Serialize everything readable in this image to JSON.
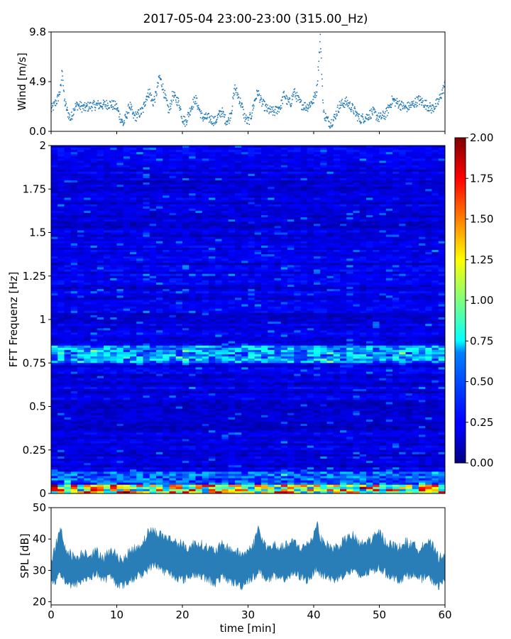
{
  "title": "2017-05-04 23:00-23:00 (315.00_Hz)",
  "chart_data": [
    {
      "type": "scatter",
      "panel": "wind",
      "ylabel": "Wind [m/s]",
      "ylim": [
        0,
        9.8
      ],
      "xlim": [
        0,
        60
      ],
      "yticks": [
        0.0,
        4.9,
        9.8
      ],
      "ytick_labels": [
        "0.0",
        "4.9",
        "9.8"
      ],
      "marker_color": "#1f77b4",
      "series": [
        {
          "x": [
            0,
            0.5,
            1,
            1.5,
            1.7,
            2,
            2.5,
            3,
            3.5,
            4,
            5,
            6,
            7,
            8,
            9,
            10,
            10.5,
            11,
            11.5,
            12,
            12.5,
            13,
            14,
            14.5,
            15,
            15.5,
            16,
            16.5,
            17,
            17.5,
            18,
            18.5,
            19,
            19.5,
            20,
            20.5,
            21,
            21.5,
            22,
            23,
            24,
            25,
            26,
            26.5,
            27,
            27.5,
            28,
            28.5,
            29,
            29.5,
            30,
            30.5,
            31,
            31.5,
            32,
            33,
            34,
            35,
            35.5,
            36,
            36.5,
            37,
            38,
            39,
            40,
            40.5,
            41,
            41.5,
            42,
            42.5,
            43,
            43.5,
            44,
            45,
            46,
            47,
            48,
            49,
            50,
            51,
            52,
            53,
            54,
            55,
            56,
            57,
            58,
            59,
            60
          ],
          "y": [
            2.1,
            2.6,
            3.2,
            4.3,
            6.3,
            3.1,
            1.9,
            1.2,
            2.3,
            2.6,
            2.3,
            2.5,
            2.6,
            2.6,
            2.7,
            2.4,
            1.4,
            0.7,
            1.6,
            2.6,
            1.5,
            1.5,
            2.1,
            3.4,
            3.9,
            2.8,
            3.6,
            5.4,
            4.4,
            3.0,
            1.9,
            3.6,
            3.2,
            2.8,
            1.3,
            0.9,
            1.8,
            2.6,
            3.2,
            1.4,
            1.3,
            1.0,
            2.0,
            1.2,
            1.0,
            2.1,
            4.3,
            3.5,
            2.6,
            1.4,
            0.9,
            1.6,
            3.0,
            3.9,
            2.9,
            2.1,
            1.9,
            2.5,
            3.7,
            2.9,
            2.8,
            3.9,
            2.7,
            2.4,
            3.1,
            4.2,
            9.3,
            1.8,
            1.2,
            0.8,
            1.1,
            1.9,
            2.6,
            2.9,
            2.2,
            1.2,
            1.4,
            1.9,
            1.3,
            1.7,
            3.1,
            2.7,
            2.3,
            2.6,
            3.1,
            2.7,
            2.2,
            2.9,
            4.6
          ]
        }
      ]
    },
    {
      "type": "heatmap",
      "panel": "spectrogram",
      "ylabel": "FFT Frequenz [Hz]",
      "ylim": [
        0,
        2
      ],
      "xlim": [
        0,
        60
      ],
      "yticks": [
        0,
        0.25,
        0.5,
        0.75,
        1,
        1.25,
        1.5,
        1.75,
        2
      ],
      "ytick_labels": [
        "0",
        "0.25",
        "0.5",
        "0.75",
        "1",
        "1.25",
        "1.5",
        "1.75",
        "2"
      ],
      "colormap": "jet",
      "colorbar": {
        "range": [
          0,
          2
        ],
        "ticks": [
          0.0,
          0.25,
          0.5,
          0.75,
          1.0,
          1.25,
          1.5,
          1.75,
          2.0
        ],
        "tick_labels": [
          "0.00",
          "0.25",
          "0.50",
          "0.75",
          "1.00",
          "1.25",
          "1.50",
          "1.75",
          "2.00"
        ]
      },
      "features": [
        {
          "band_hz": [
            0.0,
            0.05
          ],
          "level": 1.5
        },
        {
          "band_hz": [
            0.75,
            0.85
          ],
          "level": 0.8
        },
        {
          "band_hz": [
            0.1,
            2.0
          ],
          "level": 0.22
        }
      ]
    },
    {
      "type": "area",
      "panel": "spl",
      "ylabel": "SPL [dB]",
      "xlabel": "time [min]",
      "ylim": [
        19,
        50
      ],
      "xlim": [
        0,
        60
      ],
      "yticks": [
        20,
        30,
        40,
        50
      ],
      "ytick_labels": [
        "20",
        "30",
        "40",
        "50"
      ],
      "xticks": [
        0,
        10,
        20,
        30,
        40,
        50,
        60
      ],
      "xtick_labels": [
        "0",
        "10",
        "20",
        "30",
        "40",
        "50",
        "60"
      ],
      "fill_color": "#1f77b4",
      "series": [
        {
          "x": [
            0,
            0.5,
            1,
            1.5,
            2,
            3,
            4,
            5,
            6,
            7,
            8,
            9,
            10,
            11,
            12,
            13,
            14,
            15,
            16,
            17,
            18,
            19,
            20,
            21,
            22,
            23,
            24,
            25,
            26,
            27,
            28,
            29,
            30,
            31,
            31.5,
            32,
            33,
            34,
            35,
            36,
            37,
            38,
            39,
            40,
            40.5,
            41,
            42,
            43,
            44,
            45,
            46,
            47,
            48,
            49,
            50,
            51,
            52,
            53,
            54,
            55,
            56,
            57,
            58,
            59,
            60
          ],
          "upper": [
            33,
            36,
            40,
            43,
            38,
            35,
            34,
            36,
            35,
            36,
            34,
            36,
            35,
            33,
            36,
            37,
            39,
            43,
            42,
            41,
            40,
            39,
            38,
            37,
            39,
            38,
            37,
            36,
            38,
            37,
            36,
            35,
            36,
            39,
            44,
            40,
            37,
            38,
            37,
            38,
            39,
            37,
            38,
            41,
            46,
            40,
            38,
            37,
            38,
            40,
            41,
            38,
            39,
            40,
            42,
            39,
            38,
            37,
            39,
            38,
            37,
            39,
            38,
            34,
            36
          ],
          "lower": [
            27,
            26,
            28,
            29,
            27,
            25,
            26,
            27,
            28,
            29,
            27,
            28,
            26,
            25,
            27,
            28,
            29,
            31,
            32,
            30,
            29,
            28,
            27,
            28,
            29,
            28,
            27,
            26,
            28,
            27,
            26,
            25,
            27,
            28,
            30,
            29,
            27,
            28,
            27,
            28,
            29,
            28,
            27,
            29,
            31,
            29,
            28,
            27,
            28,
            29,
            30,
            28,
            29,
            30,
            31,
            29,
            28,
            27,
            28,
            29,
            27,
            28,
            27,
            25,
            27
          ]
        }
      ]
    }
  ]
}
